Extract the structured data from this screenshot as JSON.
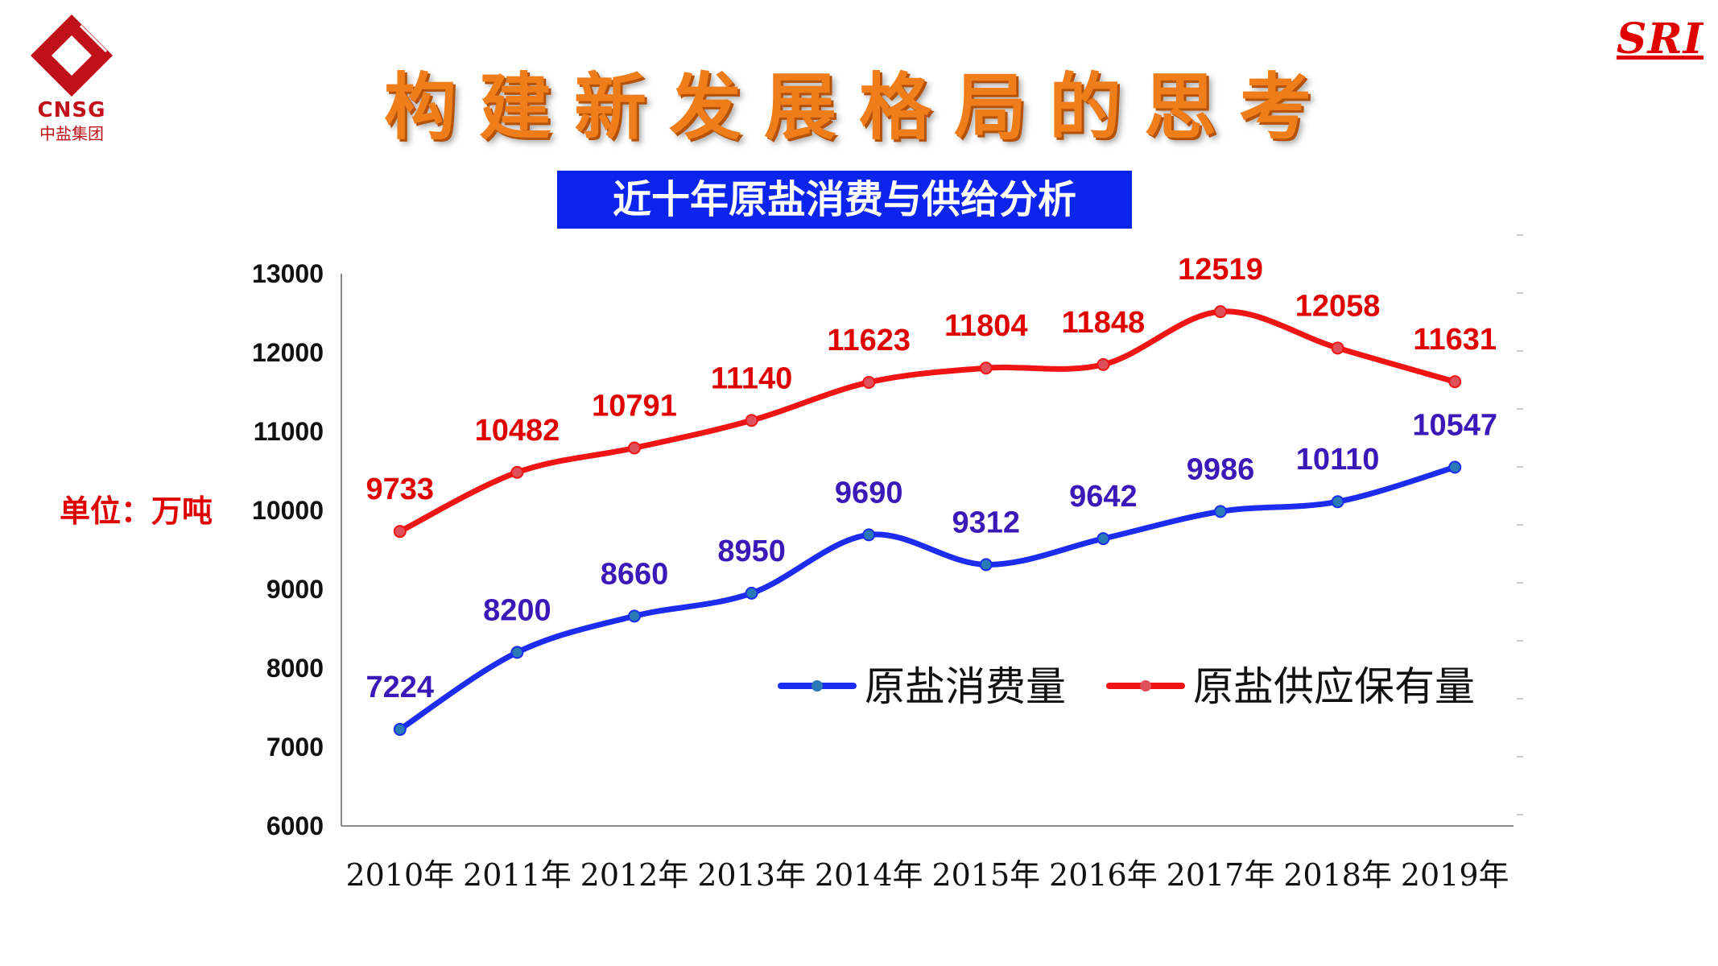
{
  "header": {
    "logo_text": "CNSG",
    "logo_cn": "中盐集团",
    "brand_mark": "SRI",
    "title": "构建新发展格局的思考"
  },
  "colors": {
    "consumption": "#1c2cf0",
    "supply": "#f01414",
    "title": "#ef7e1a",
    "subtitle_bg": "#0b24ee"
  },
  "chart_data": {
    "type": "line",
    "title": "近十年原盐消费与供给分析",
    "unit": "单位：万吨",
    "categories": [
      "2010年",
      "2011年",
      "2012年",
      "2013年",
      "2014年",
      "2015年",
      "2016年",
      "2017年",
      "2018年",
      "2019年"
    ],
    "series": [
      {
        "name": "原盐消费量",
        "color": "#1c2cf0",
        "label_color": "#3a19b8",
        "values": [
          7224,
          8200,
          8660,
          8950,
          9690,
          9312,
          9642,
          9986,
          10110,
          10547
        ]
      },
      {
        "name": "原盐供应保有量",
        "color": "#f01414",
        "label_color": "#e00000",
        "values": [
          9733,
          10482,
          10791,
          11140,
          11623,
          11804,
          11848,
          12519,
          12058,
          11631
        ]
      }
    ],
    "ylim": [
      6000,
      13000
    ],
    "yticks": [
      6000,
      7000,
      8000,
      9000,
      10000,
      11000,
      12000,
      13000
    ],
    "legend": "inside-lower-right",
    "smooth": true
  }
}
